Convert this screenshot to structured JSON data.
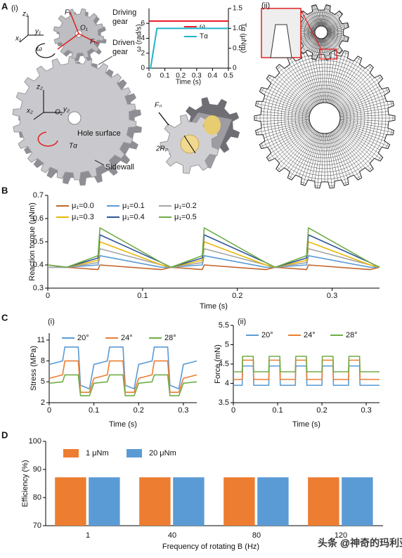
{
  "figure": {
    "panels": [
      "A",
      "B",
      "C",
      "D"
    ],
    "sublabels": [
      "(i)",
      "(ii)",
      "(i)",
      "(ii)"
    ],
    "annotations": [
      "Driving",
      "gear",
      "Driven",
      "gear",
      "Hole surface",
      "Sidewall",
      "O₁",
      "O₂",
      "z₁",
      "y₁",
      "x₁",
      "z₂",
      "y₂",
      "x₂",
      "ω",
      "Fₜ",
      "Fᵣ",
      "Tα",
      "Fₙ",
      "2Rₚ"
    ],
    "watermark": "头条 @神奇的玛利亚"
  },
  "chart_data": [
    {
      "type": "line",
      "xlabel": "Time (s)",
      "ylabel": "ω (rad/s)",
      "y2label": "Tα (μNm)",
      "x": [
        0,
        0.01,
        0.05,
        0.5
      ],
      "xlim": [
        0,
        0.5
      ],
      "xticks": [
        0,
        0.1,
        0.2,
        0.3,
        0.4,
        0.5
      ],
      "ylim": [
        0,
        8
      ],
      "yticks": [
        0,
        2,
        4,
        6
      ],
      "y2lim": [
        0,
        1.5
      ],
      "y2ticks": [
        0,
        0.5,
        {
          "value": 1,
          "label": "1.0"
        },
        1.5
      ],
      "series": [
        {
          "name": "ω",
          "color": "#e8202a",
          "values": [
            6.3,
            6.3,
            6.3,
            6.3
          ]
        },
        {
          "name": "Tα",
          "color": "#1fb5c8",
          "axis": "y2",
          "values": [
            0,
            0,
            1,
            1
          ]
        }
      ]
    },
    {
      "type": "line",
      "xlabel": "Time (s)",
      "ylabel": "Reaction torque (μNm)",
      "x": [
        0,
        0.02,
        0.053,
        0.055,
        0.12,
        0.13,
        0.163,
        0.165,
        0.23,
        0.24,
        0.273,
        0.275,
        0.34,
        0.35
      ],
      "xlim": [
        0,
        0.35
      ],
      "xticks": [
        0,
        0.1,
        0.2,
        0.3
      ],
      "ylim": [
        0.3,
        0.7
      ],
      "yticks": [
        0.3,
        0.4,
        0.5,
        0.6,
        0.7
      ],
      "series": [
        {
          "name": "μ₁=0.0",
          "color": "#c0652a",
          "values": [
            0.39,
            0.39,
            0.38,
            0.4,
            0.38,
            0.39,
            0.38,
            0.4,
            0.38,
            0.39,
            0.38,
            0.4,
            0.38,
            0.39
          ]
        },
        {
          "name": "μ₁=0.1",
          "color": "#5b9bd5",
          "values": [
            0.39,
            0.39,
            0.4,
            0.44,
            0.39,
            0.39,
            0.4,
            0.44,
            0.39,
            0.39,
            0.4,
            0.44,
            0.39,
            0.39
          ]
        },
        {
          "name": "μ₁=0.2",
          "color": "#a5a5a5",
          "values": [
            0.39,
            0.39,
            0.41,
            0.47,
            0.4,
            0.39,
            0.41,
            0.47,
            0.4,
            0.39,
            0.41,
            0.47,
            0.4,
            0.39
          ]
        },
        {
          "name": "μ₁=0.3",
          "color": "#e8b70a",
          "values": [
            0.4,
            0.39,
            0.42,
            0.5,
            0.4,
            0.39,
            0.42,
            0.5,
            0.4,
            0.39,
            0.42,
            0.5,
            0.4,
            0.39
          ]
        },
        {
          "name": "μ₁=0.4",
          "color": "#2f5597",
          "values": [
            0.4,
            0.39,
            0.43,
            0.53,
            0.41,
            0.39,
            0.43,
            0.53,
            0.41,
            0.39,
            0.43,
            0.53,
            0.41,
            0.39
          ]
        },
        {
          "name": "μ₁=0.5",
          "color": "#70ad47",
          "values": [
            0.4,
            0.39,
            0.44,
            0.56,
            0.41,
            0.39,
            0.44,
            0.56,
            0.41,
            0.39,
            0.44,
            0.56,
            0.41,
            0.39
          ]
        }
      ]
    },
    {
      "type": "line",
      "xlabel": "Time (s)",
      "ylabel": "Stress (MPa)",
      "x": [
        0,
        0.03,
        0.035,
        0.065,
        0.07,
        0.09,
        0.1,
        0.13,
        0.135,
        0.165,
        0.17,
        0.19,
        0.2,
        0.23,
        0.235,
        0.265,
        0.27,
        0.29,
        0.3,
        0.33
      ],
      "xlim": [
        0,
        0.33
      ],
      "xticks": [
        0,
        0.1,
        0.2,
        0.3
      ],
      "ylim": [
        2,
        12
      ],
      "yticks": [
        2,
        5,
        8,
        11
      ],
      "series": [
        {
          "name": "20°",
          "color": "#5b9bd5",
          "values": [
            7.5,
            8,
            10,
            10,
            4.5,
            4,
            7.5,
            8,
            10,
            10,
            4.5,
            4,
            7.5,
            8,
            10,
            10,
            4.5,
            4,
            7.5,
            8
          ]
        },
        {
          "name": "24°",
          "color": "#ed7d31",
          "values": [
            5.5,
            6,
            8,
            8,
            3.5,
            3.5,
            5.5,
            6,
            8,
            8,
            3.5,
            3.5,
            5.5,
            6,
            8,
            8,
            3.5,
            3.5,
            5.5,
            6
          ]
        },
        {
          "name": "28°",
          "color": "#70ad47",
          "values": [
            4.8,
            5,
            6,
            6,
            3,
            3,
            4.8,
            5,
            6,
            6,
            3,
            3,
            4.8,
            5,
            6,
            6,
            3,
            3,
            4.8,
            5
          ]
        }
      ]
    },
    {
      "type": "line",
      "xlabel": "Time (s)",
      "ylabel": "Force  (mN)",
      "x": [
        0,
        0.02,
        0.021,
        0.045,
        0.046,
        0.08,
        0.081,
        0.105,
        0.106,
        0.14,
        0.141,
        0.165,
        0.166,
        0.2,
        0.201,
        0.225,
        0.226,
        0.26,
        0.261,
        0.285,
        0.286,
        0.33
      ],
      "xlim": [
        0,
        0.33
      ],
      "xticks": [
        0,
        0.1,
        0.2,
        0.3
      ],
      "ylim": [
        3.5,
        5.5
      ],
      "yticks": [
        3.5,
        4,
        4.5,
        5,
        5.5
      ],
      "series": [
        {
          "name": "20°",
          "color": "#5b9bd5",
          "values": [
            3.95,
            3.95,
            4.45,
            4.45,
            3.95,
            3.95,
            4.45,
            4.45,
            3.95,
            3.95,
            4.45,
            4.45,
            3.95,
            3.95,
            4.45,
            4.45,
            3.95,
            3.95,
            4.45,
            4.45,
            3.95,
            3.95
          ]
        },
        {
          "name": "24°",
          "color": "#ed7d31",
          "values": [
            4.1,
            4.1,
            4.6,
            4.6,
            4.1,
            4.1,
            4.6,
            4.6,
            4.1,
            4.1,
            4.6,
            4.6,
            4.1,
            4.1,
            4.6,
            4.6,
            4.1,
            4.1,
            4.6,
            4.6,
            4.1,
            4.1
          ]
        },
        {
          "name": "28°",
          "color": "#70ad47",
          "values": [
            4.3,
            4.3,
            4.7,
            4.7,
            4.3,
            4.3,
            4.7,
            4.7,
            4.3,
            4.3,
            4.7,
            4.7,
            4.3,
            4.3,
            4.7,
            4.7,
            4.3,
            4.3,
            4.7,
            4.7,
            4.3,
            4.3
          ]
        }
      ]
    },
    {
      "type": "bar",
      "xlabel": "Frequency of rotating B (Hz)",
      "ylabel": "Efficiency (%)",
      "categories": [
        "1",
        "40",
        "80",
        "120"
      ],
      "ylim": [
        70,
        100
      ],
      "yticks": [
        70,
        80,
        90,
        100
      ],
      "series": [
        {
          "name": "1 μNm",
          "color": "#ed7d31",
          "values": [
            87.2,
            87.2,
            87.2,
            87.2
          ]
        },
        {
          "name": "20 μNm",
          "color": "#5b9bd5",
          "values": [
            87.2,
            87.2,
            87.2,
            87.2
          ]
        }
      ]
    }
  ]
}
